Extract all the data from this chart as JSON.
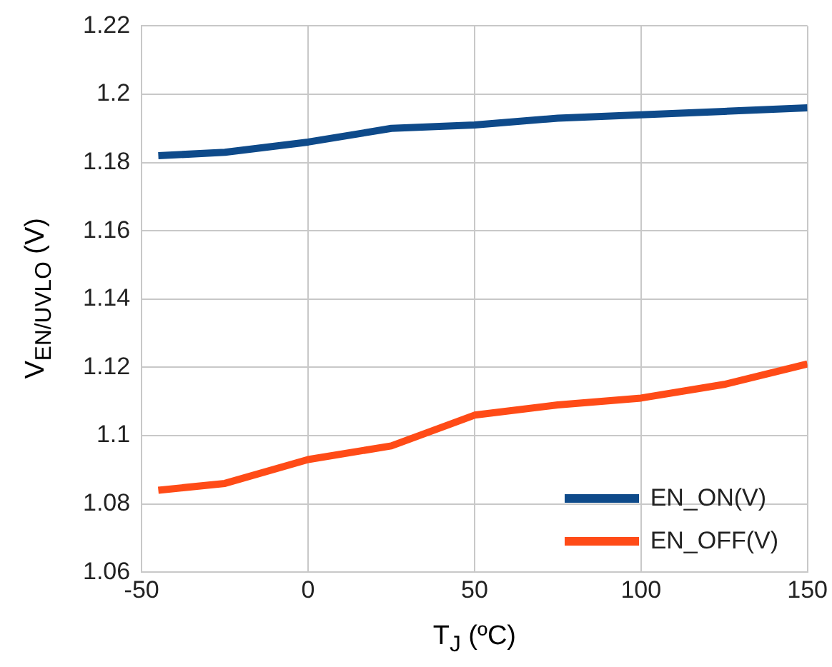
{
  "chart_data": {
    "type": "line",
    "xlabel": "T$_{J}$ (ºC)",
    "ylabel": "V$_{EN/UVLO}$ (V)",
    "x": [
      -45,
      -25,
      0,
      25,
      50,
      75,
      100,
      125,
      150
    ],
    "series": [
      {
        "name": "EN_ON(V)",
        "color": "#0e4a8a",
        "values": [
          1.182,
          1.183,
          1.186,
          1.19,
          1.191,
          1.193,
          1.194,
          1.195,
          1.196
        ]
      },
      {
        "name": "EN_OFF(V)",
        "color": "#ff4b17",
        "values": [
          1.084,
          1.086,
          1.093,
          1.097,
          1.106,
          1.109,
          1.111,
          1.115,
          1.121
        ]
      }
    ],
    "xlim": [
      -50,
      150
    ],
    "xticks": [
      -50,
      0,
      50,
      100,
      150
    ],
    "ylim": [
      1.06,
      1.22
    ],
    "yticks": [
      1.06,
      1.08,
      1.1,
      1.12,
      1.14,
      1.16,
      1.18,
      1.2,
      1.22
    ],
    "grid": true,
    "legend": "bottom right",
    "marker": "none",
    "line_style": "solid"
  }
}
